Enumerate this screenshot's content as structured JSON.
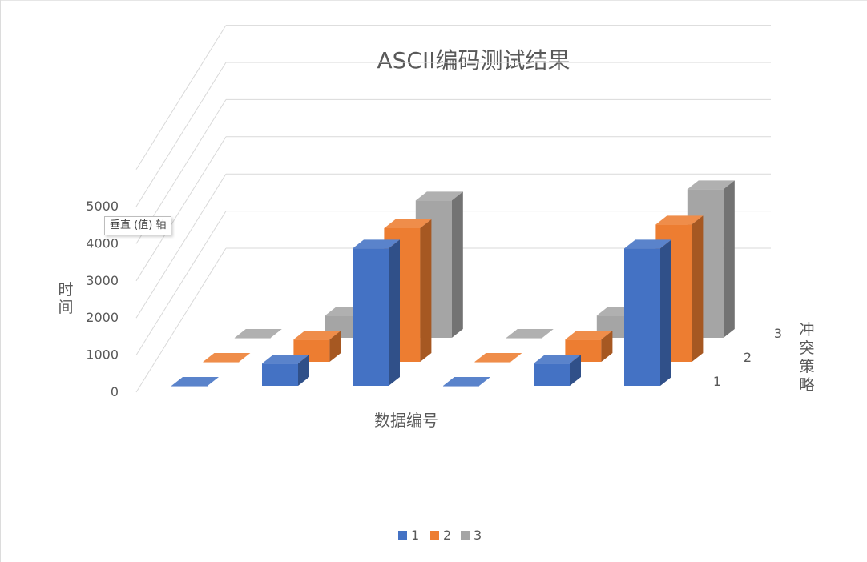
{
  "chart_data": {
    "type": "bar",
    "title": "ASCII编码测试结果",
    "xlabel": "数据编号",
    "ylabel": "时间",
    "zlabel": "冲突策略",
    "ylim": [
      0,
      5000
    ],
    "ytick_labels": [
      "0",
      "1000",
      "2000",
      "3000",
      "4000",
      "5000"
    ],
    "depth_labels": [
      "1",
      "2",
      "3"
    ],
    "legend_position": "bottom",
    "grid": true,
    "groups": [
      {
        "name": "",
        "series_values": [
          [
            0,
            600,
            3700
          ],
          [
            0,
            600,
            3600
          ],
          [
            0,
            600,
            3700
          ]
        ]
      },
      {
        "name": "",
        "series_values": [
          [
            0,
            600,
            3700
          ],
          [
            0,
            600,
            3700
          ],
          [
            0,
            600,
            4000
          ]
        ]
      }
    ],
    "series": [
      {
        "name": "1",
        "color": "#4472C4"
      },
      {
        "name": "2",
        "color": "#ED7D31"
      },
      {
        "name": "3",
        "color": "#A5A5A5"
      }
    ]
  },
  "tooltip": {
    "text": "垂直 (值) 轴"
  }
}
